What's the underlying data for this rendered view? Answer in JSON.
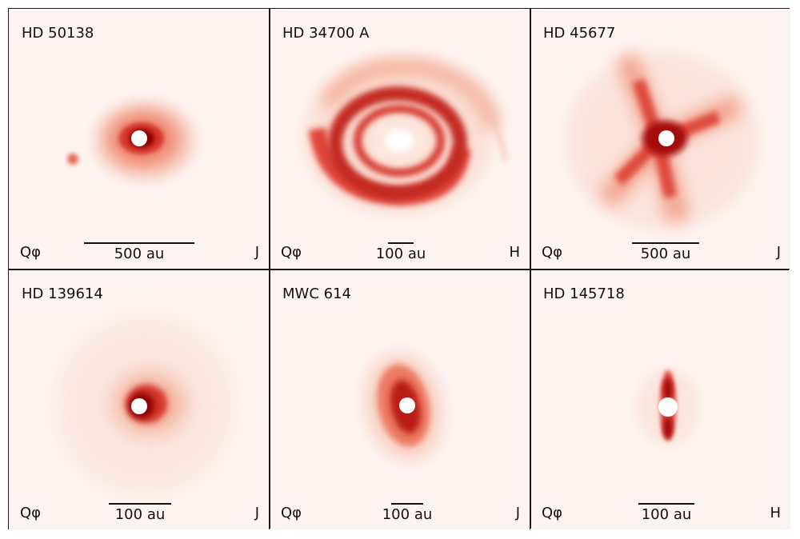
{
  "colors": {
    "background": "#fdf4f1",
    "peak": "#8b0000",
    "mid": "#e0443a",
    "low": "#f6b7a6",
    "star": "#ffffff"
  },
  "panels": [
    {
      "target": "HD 50138",
      "stokes": "Qφ",
      "band": "J",
      "scale": "500 au"
    },
    {
      "target": "HD 34700 A",
      "stokes": "Qφ",
      "band": "H",
      "scale": "100 au"
    },
    {
      "target": "HD 45677",
      "stokes": "Qφ",
      "band": "J",
      "scale": "500 au"
    },
    {
      "target": "HD 139614",
      "stokes": "Qφ",
      "band": "J",
      "scale": "100 au"
    },
    {
      "target": "MWC 614",
      "stokes": "Qφ",
      "band": "J",
      "scale": "100 au"
    },
    {
      "target": "HD 145718",
      "stokes": "Qφ",
      "band": "H",
      "scale": "100 au"
    }
  ]
}
